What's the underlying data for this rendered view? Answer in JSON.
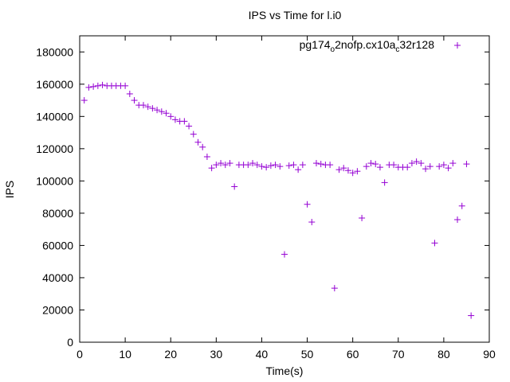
{
  "chart_data": {
    "type": "scatter",
    "title": "IPS vs Time for l.i0",
    "xlabel": "Time(s)",
    "ylabel": "IPS",
    "xlim": [
      0,
      90
    ],
    "ylim": [
      0,
      190000
    ],
    "xticks": [
      "0",
      "10",
      "20",
      "30",
      "40",
      "50",
      "60",
      "70",
      "80",
      "90"
    ],
    "yticks": [
      "0",
      "20000",
      "40000",
      "60000",
      "80000",
      "100000",
      "120000",
      "140000",
      "160000",
      "180000"
    ],
    "grid": false,
    "legend_position": "top-right",
    "marker": "+",
    "color": "#9400d3",
    "series": [
      {
        "name_parts": [
          {
            "text": "pg174",
            "sub": false
          },
          {
            "text": "o",
            "sub": true
          },
          {
            "text": "2nofp.cx10a",
            "sub": false
          },
          {
            "text": "c",
            "sub": true
          },
          {
            "text": "32r128",
            "sub": false
          }
        ],
        "x": [
          1,
          2,
          3,
          4,
          5,
          6,
          7,
          8,
          9,
          10,
          11,
          12,
          13,
          14,
          15,
          16,
          17,
          18,
          19,
          20,
          21,
          22,
          23,
          24,
          25,
          26,
          27,
          28,
          29,
          30,
          31,
          32,
          33,
          34,
          35,
          36,
          37,
          38,
          39,
          40,
          41,
          42,
          43,
          44,
          45,
          46,
          47,
          48,
          49,
          50,
          51,
          52,
          53,
          54,
          55,
          56,
          57,
          58,
          59,
          60,
          61,
          62,
          63,
          64,
          65,
          66,
          67,
          68,
          69,
          70,
          71,
          72,
          73,
          74,
          75,
          76,
          77,
          78,
          79,
          80,
          81,
          82,
          83,
          84,
          85,
          86
        ],
        "y": [
          150000,
          158000,
          158500,
          159000,
          159500,
          159000,
          159000,
          159000,
          159000,
          159000,
          154000,
          150000,
          147000,
          147000,
          146000,
          145000,
          144000,
          143000,
          142000,
          140000,
          138000,
          137000,
          137000,
          134000,
          129000,
          124000,
          121000,
          115000,
          108000,
          110000,
          111000,
          110000,
          111000,
          96500,
          110000,
          110000,
          110000,
          111000,
          110000,
          109000,
          108500,
          109500,
          110000,
          109000,
          54500,
          109500,
          110000,
          107000,
          110000,
          85500,
          74500,
          111000,
          110500,
          110000,
          110000,
          33500,
          107000,
          108000,
          106500,
          105000,
          106000,
          77000,
          109000,
          111000,
          110500,
          108500,
          99000,
          110000,
          110000,
          108500,
          108500,
          108500,
          111000,
          112000,
          111000,
          107500,
          109000,
          61500,
          109000,
          110000,
          108000,
          111000,
          76000,
          84500,
          110500,
          16500
        ]
      }
    ]
  }
}
